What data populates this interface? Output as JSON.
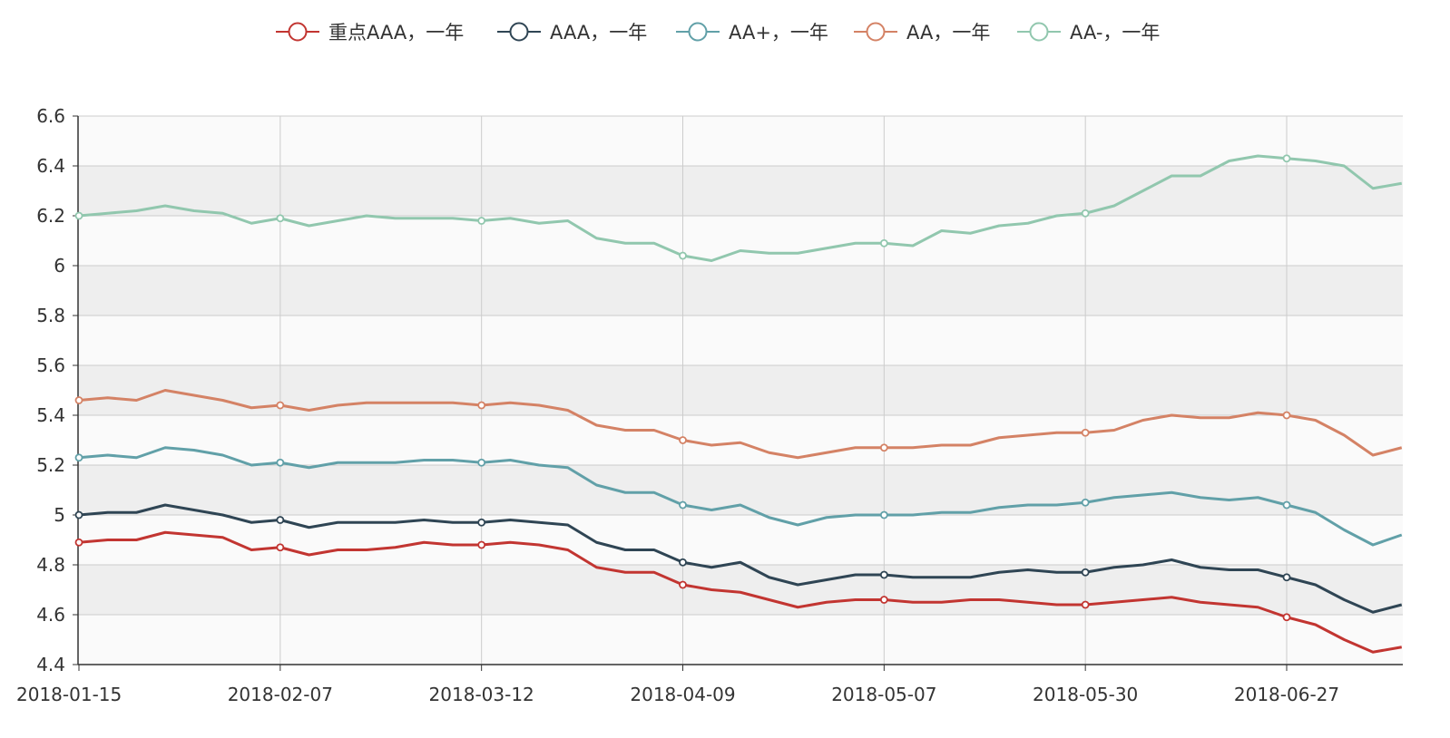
{
  "chart_data": {
    "type": "line",
    "title": "",
    "xlabel": "",
    "ylabel": "",
    "ylim": [
      4.4,
      6.6
    ],
    "y_ticks": [
      "6.6",
      "6.4",
      "6.2",
      "6",
      "5.8",
      "5.6",
      "5.4",
      "5.2",
      "5",
      "4.8",
      "4.6",
      "4.4"
    ],
    "x_tick_labels": [
      "2018-01-15",
      "2018-02-07",
      "2018-03-12",
      "2018-04-09",
      "2018-05-07",
      "2018-05-30",
      "2018-06-27"
    ],
    "grid": true,
    "legend_position": "top-center",
    "background_bands": [
      "#fafafa",
      "#eeeeee"
    ],
    "series": [
      {
        "name": "重点AAA，一年",
        "color": "#c23531",
        "values": [
          4.89,
          4.9,
          4.9,
          4.93,
          4.92,
          4.91,
          4.86,
          4.87,
          4.84,
          4.86,
          4.86,
          4.87,
          4.89,
          4.88,
          4.88,
          4.89,
          4.88,
          4.86,
          4.79,
          4.77,
          4.77,
          4.72,
          4.7,
          4.69,
          4.66,
          4.63,
          4.65,
          4.66,
          4.66,
          4.65,
          4.65,
          4.66,
          4.66,
          4.65,
          4.64,
          4.64,
          4.65,
          4.66,
          4.67,
          4.65,
          4.64,
          4.63,
          4.59,
          4.56,
          4.5,
          4.45,
          4.47
        ]
      },
      {
        "name": "AAA，一年",
        "color": "#2f4554",
        "values": [
          5.0,
          5.01,
          5.01,
          5.04,
          5.02,
          5.0,
          4.97,
          4.98,
          4.95,
          4.97,
          4.97,
          4.97,
          4.98,
          4.97,
          4.97,
          4.98,
          4.97,
          4.96,
          4.89,
          4.86,
          4.86,
          4.81,
          4.79,
          4.81,
          4.75,
          4.72,
          4.74,
          4.76,
          4.76,
          4.75,
          4.75,
          4.75,
          4.77,
          4.78,
          4.77,
          4.77,
          4.79,
          4.8,
          4.82,
          4.79,
          4.78,
          4.78,
          4.75,
          4.72,
          4.66,
          4.61,
          4.64
        ]
      },
      {
        "name": "AA+，一年",
        "color": "#61a0a8",
        "values": [
          5.23,
          5.24,
          5.23,
          5.27,
          5.26,
          5.24,
          5.2,
          5.21,
          5.19,
          5.21,
          5.21,
          5.21,
          5.22,
          5.22,
          5.21,
          5.22,
          5.2,
          5.19,
          5.12,
          5.09,
          5.09,
          5.04,
          5.02,
          5.04,
          4.99,
          4.96,
          4.99,
          5.0,
          5.0,
          5.0,
          5.01,
          5.01,
          5.03,
          5.04,
          5.04,
          5.05,
          5.07,
          5.08,
          5.09,
          5.07,
          5.06,
          5.07,
          5.04,
          5.01,
          4.94,
          4.88,
          4.92
        ]
      },
      {
        "name": "AA，一年",
        "color": "#d48265",
        "values": [
          5.46,
          5.47,
          5.46,
          5.5,
          5.48,
          5.46,
          5.43,
          5.44,
          5.42,
          5.44,
          5.45,
          5.45,
          5.45,
          5.45,
          5.44,
          5.45,
          5.44,
          5.42,
          5.36,
          5.34,
          5.34,
          5.3,
          5.28,
          5.29,
          5.25,
          5.23,
          5.25,
          5.27,
          5.27,
          5.27,
          5.28,
          5.28,
          5.31,
          5.32,
          5.33,
          5.33,
          5.34,
          5.38,
          5.4,
          5.39,
          5.39,
          5.41,
          5.4,
          5.38,
          5.32,
          5.24,
          5.27
        ]
      },
      {
        "name": "AA-，一年",
        "color": "#91c7ae",
        "values": [
          6.2,
          6.21,
          6.22,
          6.24,
          6.22,
          6.21,
          6.17,
          6.19,
          6.16,
          6.18,
          6.2,
          6.19,
          6.19,
          6.19,
          6.18,
          6.19,
          6.17,
          6.18,
          6.11,
          6.09,
          6.09,
          6.04,
          6.02,
          6.06,
          6.05,
          6.05,
          6.07,
          6.09,
          6.09,
          6.08,
          6.14,
          6.13,
          6.16,
          6.17,
          6.2,
          6.21,
          6.24,
          6.3,
          6.36,
          6.36,
          6.42,
          6.44,
          6.43,
          6.42,
          6.4,
          6.31,
          6.33
        ]
      }
    ]
  }
}
